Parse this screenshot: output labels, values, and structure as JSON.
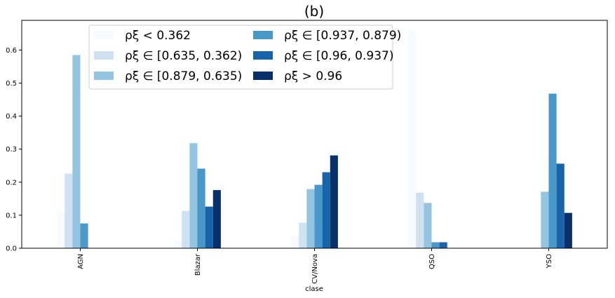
{
  "chart_data": {
    "type": "bar",
    "title": "(b)",
    "xlabel": "clase",
    "ylabel": "",
    "ylim": [
      0,
      0.69
    ],
    "yticks": [
      "0.0",
      "0.1",
      "0.2",
      "0.3",
      "0.4",
      "0.5",
      "0.6"
    ],
    "ytick_values": [
      0,
      0.1,
      0.2,
      0.3,
      0.4,
      0.5,
      0.6
    ],
    "categories": [
      "AGN",
      "Blazar",
      "CV/Nova",
      "QSO",
      "YSO"
    ],
    "legend_position": "top-left",
    "legend_columns": 2,
    "grid": false,
    "series": [
      {
        "name": "ρξ < 0.362",
        "color": "#f7fbff",
        "values": [
          0.112,
          0.024,
          0.038,
          0.66,
          0.0
        ]
      },
      {
        "name": "ρξ ∈ [0.635, 0.362)",
        "color": "#d0e1f2",
        "values": [
          0.226,
          0.113,
          0.077,
          0.168,
          0.0
        ]
      },
      {
        "name": "ρξ ∈ [0.879, 0.635)",
        "color": "#94c4df",
        "values": [
          0.585,
          0.318,
          0.179,
          0.137,
          0.171
        ]
      },
      {
        "name": "ρξ ∈ [0.937, 0.879)",
        "color": "#4a98c9",
        "values": [
          0.075,
          0.241,
          0.192,
          0.018,
          0.468
        ]
      },
      {
        "name": "ρξ ∈ [0.96, 0.937)",
        "color": "#1764ab",
        "values": [
          0.0,
          0.126,
          0.23,
          0.018,
          0.256
        ]
      },
      {
        "name": "ρξ > 0.96",
        "color": "#08306b",
        "values": [
          0.0,
          0.176,
          0.281,
          0.0,
          0.107
        ]
      }
    ]
  }
}
